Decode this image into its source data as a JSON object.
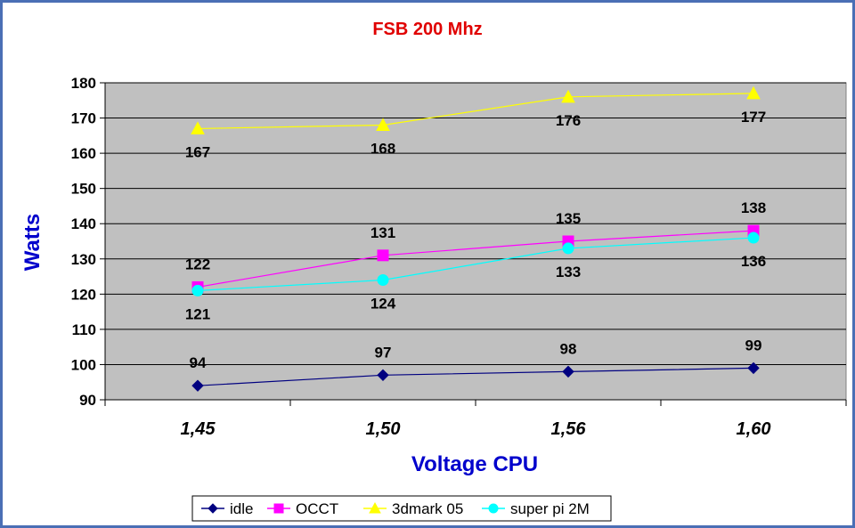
{
  "chart_data": {
    "type": "line",
    "title": "FSB 200 Mhz",
    "xlabel": "Voltage CPU",
    "ylabel": "Watts",
    "categories": [
      "1,45",
      "1,50",
      "1,56",
      "1,60"
    ],
    "ylim": [
      90,
      180
    ],
    "yticks": [
      90,
      100,
      110,
      120,
      130,
      140,
      150,
      160,
      170,
      180
    ],
    "grid": true,
    "legend_position": "bottom",
    "series": [
      {
        "name": "idle",
        "values": [
          94,
          97,
          98,
          99
        ],
        "color": "#000080",
        "marker": "diamond",
        "label_pos": "above"
      },
      {
        "name": "OCCT",
        "values": [
          122,
          131,
          135,
          138
        ],
        "color": "#ff00ff",
        "marker": "square",
        "label_pos": "above"
      },
      {
        "name": "3dmark 05",
        "values": [
          167,
          168,
          176,
          177
        ],
        "color": "#ffff00",
        "marker": "triangle",
        "label_pos": "below"
      },
      {
        "name": "super pi 2M",
        "values": [
          121,
          124,
          133,
          136
        ],
        "color": "#00ffff",
        "marker": "circle",
        "label_pos": "below"
      }
    ],
    "colors": {
      "title": "#e00000",
      "axis_label": "#0000cc",
      "plot_background": "#c0c0c0"
    }
  }
}
